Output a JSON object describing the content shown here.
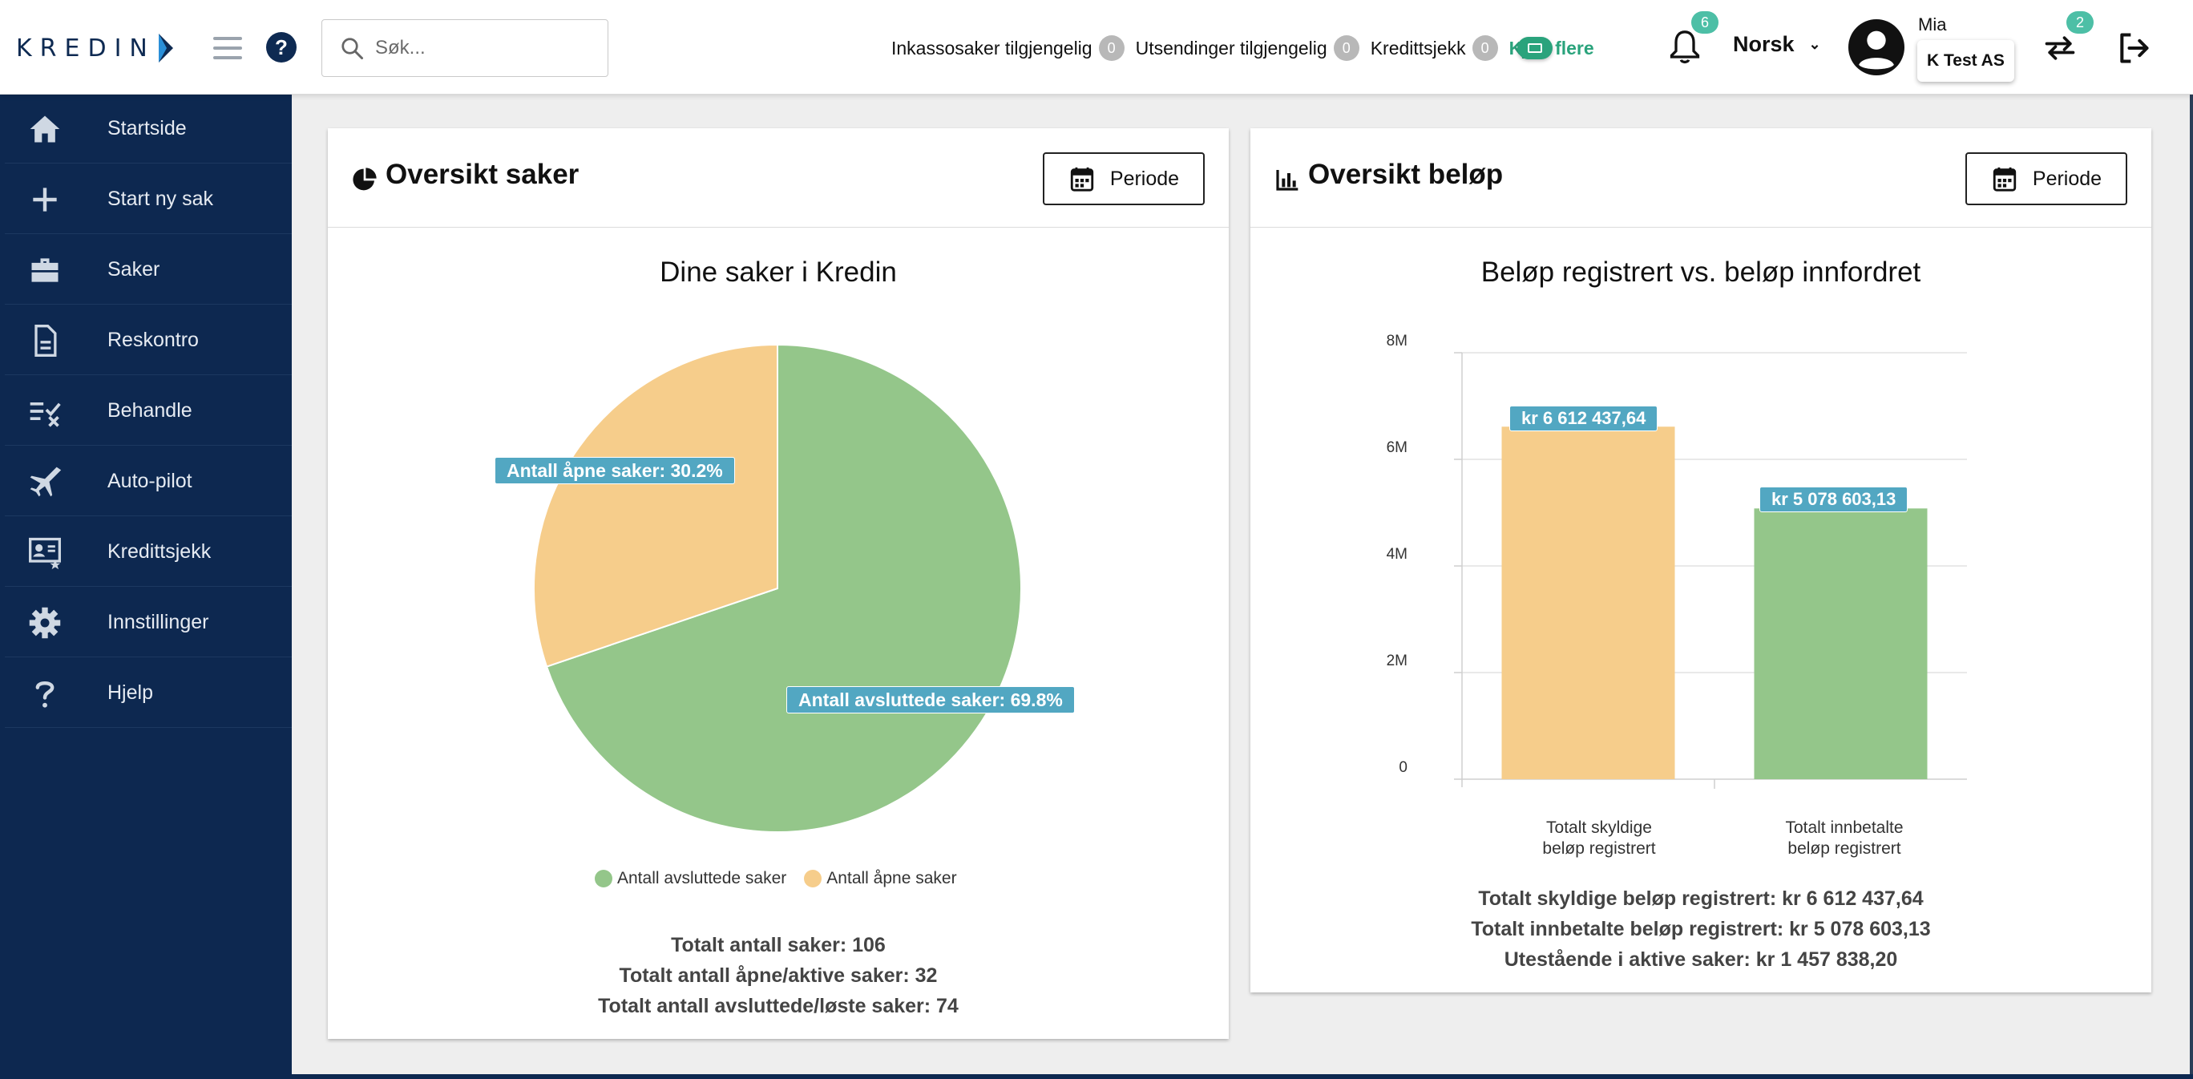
{
  "header": {
    "logo": "KREDIN",
    "search_placeholder": "Søk...",
    "counters": [
      {
        "label": "Inkassosaker tilgjengelig",
        "count": "0"
      },
      {
        "label": "Utsendinger tilgjengelig",
        "count": "0"
      },
      {
        "label": "Kredittsjekk",
        "count": "0"
      }
    ],
    "buy_more": "Kjøp flere",
    "notifications_count": "6",
    "language": "Norsk",
    "user_name": "Mia",
    "organization": "K Test AS",
    "switch_count": "2"
  },
  "sidebar": {
    "items": [
      {
        "label": "Startside",
        "icon": "home-icon"
      },
      {
        "label": "Start ny sak",
        "icon": "plus-icon"
      },
      {
        "label": "Saker",
        "icon": "briefcase-icon"
      },
      {
        "label": "Reskontro",
        "icon": "document-icon"
      },
      {
        "label": "Behandle",
        "icon": "checklist-icon"
      },
      {
        "label": "Auto-pilot",
        "icon": "airplane-icon"
      },
      {
        "label": "Kredittsjekk",
        "icon": "id-card-icon"
      },
      {
        "label": "Innstillinger",
        "icon": "gear-icon"
      },
      {
        "label": "Hjelp",
        "icon": "question-icon"
      }
    ]
  },
  "cases_card": {
    "title": "Oversikt saker",
    "period_label": "Periode",
    "chart_title": "Dine saker i Kredin",
    "open_label": "Antall åpne saker: 30.2%",
    "closed_label": "Antall avsluttede saker: 69.8%",
    "legend": [
      "Antall avsluttede saker",
      "Antall åpne saker"
    ],
    "summary": [
      "Totalt antall saker: 106",
      "Totalt antall åpne/aktive saker: 32",
      "Totalt antall avsluttede/løste saker: 74"
    ]
  },
  "amounts_card": {
    "title": "Oversikt beløp",
    "period_label": "Periode",
    "chart_title": "Beløp registrert vs. beløp innfordret",
    "bar_labels": [
      "kr 6 612 437,64",
      "kr 5 078 603,13"
    ],
    "y_ticks": [
      "0",
      "2M",
      "4M",
      "6M",
      "8M"
    ],
    "x_labels": [
      [
        "Totalt skyldige",
        "beløp registrert"
      ],
      [
        "Totalt innbetalte",
        "beløp registrert"
      ]
    ],
    "summary": [
      "Totalt skyldige beløp registrert: kr 6 612 437,64",
      "Totalt innbetalte beløp registrert: kr 5 078 603,13",
      "Utestående i aktive saker: kr 1 457 838,20"
    ]
  },
  "colors": {
    "navy": "#0d2850",
    "green": "#94c68a",
    "orange": "#f6cd8b",
    "label_blue": "#52a7c2",
    "accent_green": "#2aa37c"
  },
  "chart_data": [
    {
      "type": "pie",
      "title": "Dine saker i Kredin",
      "categories": [
        "Antall avsluttede saker",
        "Antall åpne saker"
      ],
      "values": [
        69.8,
        30.2
      ],
      "colors": [
        "#94c68a",
        "#f6cd8b"
      ],
      "legend": "bottom"
    },
    {
      "type": "bar",
      "title": "Beløp registrert vs. beløp innfordret",
      "categories": [
        "Totalt skyldige beløp registrert",
        "Totalt innbetalte beløp registrert"
      ],
      "values": [
        6612437.64,
        5078603.13
      ],
      "colors": [
        "#f6cd8b",
        "#94c68a"
      ],
      "ylim": [
        0,
        8000000
      ],
      "grid": true
    }
  ]
}
